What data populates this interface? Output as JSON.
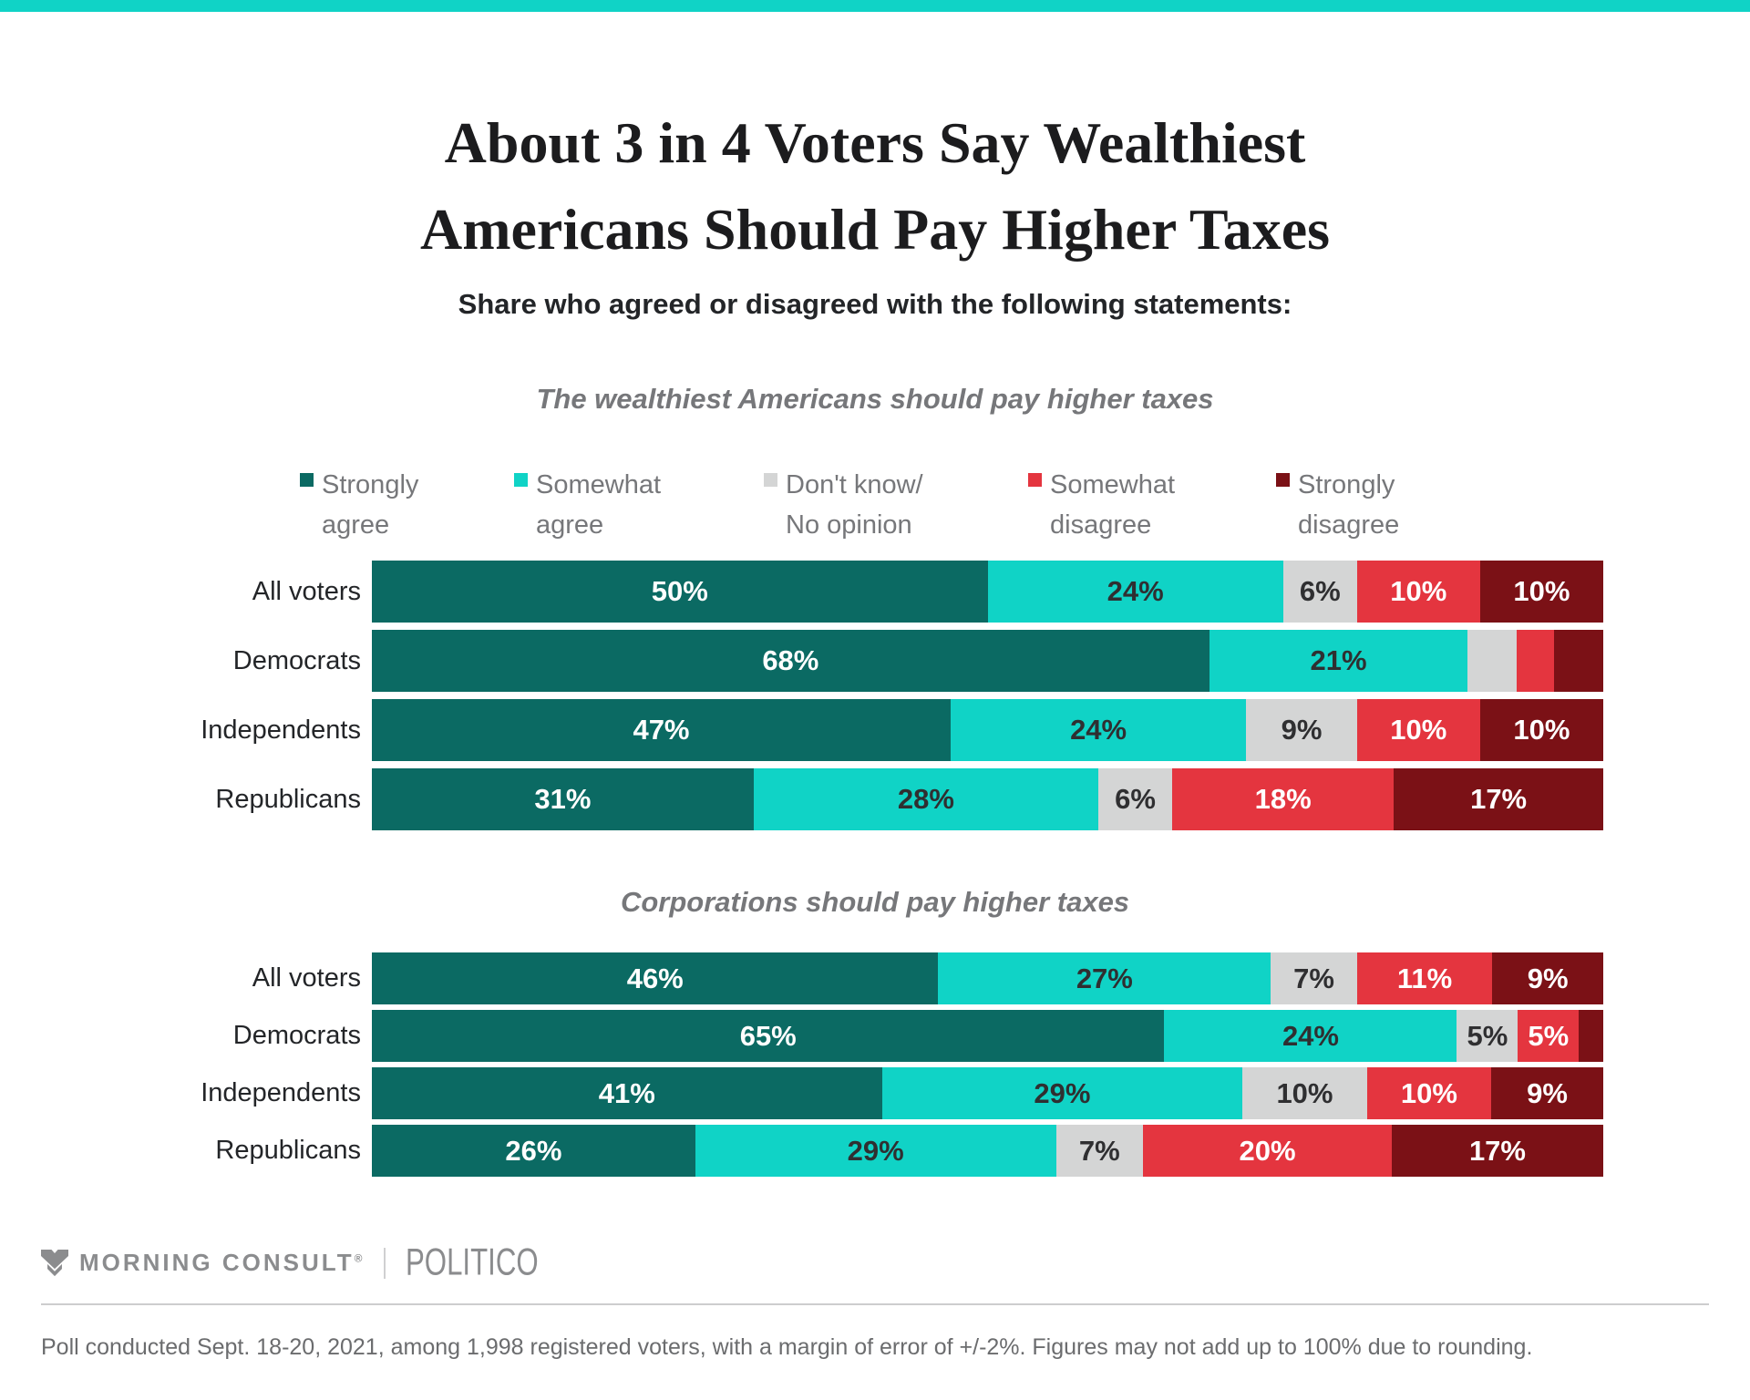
{
  "page": {
    "accent_color": "#10d3c6",
    "background": "#ffffff"
  },
  "header": {
    "title_lines": [
      "About 3 in 4 Voters Say Wealthiest",
      "Americans Should Pay Higher Taxes"
    ],
    "subtitle": "Share who agreed or disagreed with the following statements:"
  },
  "legend": [
    {
      "line1": "Strongly",
      "line2": "agree",
      "color": "#0b6a63"
    },
    {
      "line1": "Somewhat",
      "line2": "agree",
      "color": "#10d3c6"
    },
    {
      "line1": "Don't know/",
      "line2": "No opinion",
      "color": "#d4d5d5"
    },
    {
      "line1": "Somewhat",
      "line2": "disagree",
      "color": "#e4353f"
    },
    {
      "line1": "Strongly",
      "line2": "disagree",
      "color": "#7b1116"
    }
  ],
  "chart_data": [
    {
      "type": "bar",
      "orientation": "horizontal",
      "stacked": true,
      "title": "The wealthiest Americans should pay higher taxes",
      "categories": [
        "All voters",
        "Democrats",
        "Independents",
        "Republicans"
      ],
      "series": [
        {
          "name": "Strongly agree",
          "color": "#0b6a63",
          "label_color": "#ffffff",
          "values": [
            50,
            68,
            47,
            31
          ]
        },
        {
          "name": "Somewhat agree",
          "color": "#10d3c6",
          "label_color": "#2f2f31",
          "values": [
            24,
            21,
            24,
            28
          ]
        },
        {
          "name": "Don't know/No opinion",
          "color": "#d4d5d5",
          "label_color": "#2f2f31",
          "values": [
            6,
            4,
            9,
            6
          ]
        },
        {
          "name": "Somewhat disagree",
          "color": "#e4353f",
          "label_color": "#ffffff",
          "values": [
            10,
            3,
            10,
            18
          ]
        },
        {
          "name": "Strongly disagree",
          "color": "#7b1116",
          "label_color": "#ffffff",
          "values": [
            10,
            4,
            10,
            17
          ]
        }
      ],
      "value_suffix": "%",
      "value_label_min": 5,
      "xlim": [
        0,
        100
      ],
      "legend_position": "top",
      "grid": false
    },
    {
      "type": "bar",
      "orientation": "horizontal",
      "stacked": true,
      "title": "Corporations should pay higher taxes",
      "categories": [
        "All voters",
        "Democrats",
        "Independents",
        "Republicans"
      ],
      "series": [
        {
          "name": "Strongly agree",
          "color": "#0b6a63",
          "label_color": "#ffffff",
          "values": [
            46,
            65,
            41,
            26
          ]
        },
        {
          "name": "Somewhat agree",
          "color": "#10d3c6",
          "label_color": "#2f2f31",
          "values": [
            27,
            24,
            29,
            29
          ]
        },
        {
          "name": "Don't know/No opinion",
          "color": "#d4d5d5",
          "label_color": "#2f2f31",
          "values": [
            7,
            5,
            10,
            7
          ]
        },
        {
          "name": "Somewhat disagree",
          "color": "#e4353f",
          "label_color": "#ffffff",
          "values": [
            11,
            5,
            10,
            20
          ]
        },
        {
          "name": "Strongly disagree",
          "color": "#7b1116",
          "label_color": "#ffffff",
          "values": [
            9,
            2,
            9,
            17
          ]
        }
      ],
      "value_suffix": "%",
      "value_label_min": 5,
      "xlim": [
        0,
        100
      ],
      "legend_position": "top",
      "grid": false
    }
  ],
  "footer": {
    "brand": "MORNING CONSULT",
    "brand_reg": "®",
    "partner": "POLITICO",
    "note": "Poll conducted Sept. 18-20, 2021, among 1,998 registered voters, with a margin of error of +/-2%. Figures may not add up to 100% due to rounding."
  }
}
